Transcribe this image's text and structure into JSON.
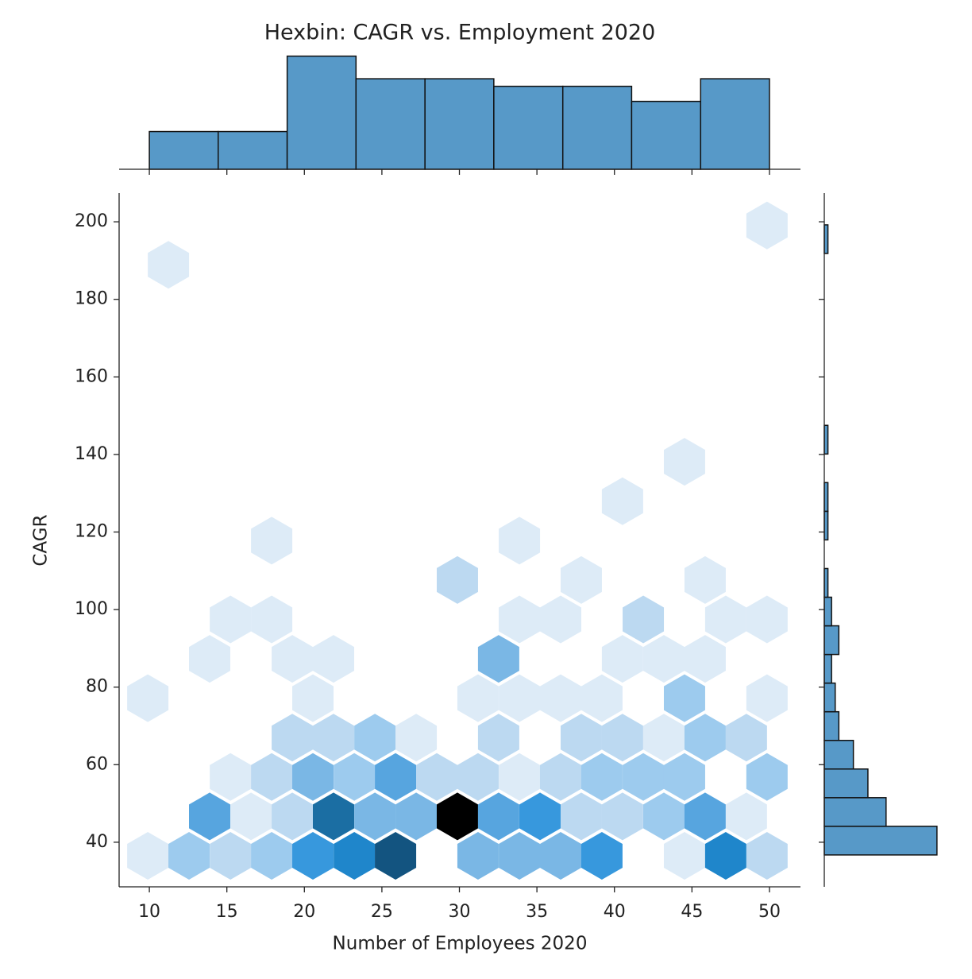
{
  "chart_data": [
    {
      "type": "hexbin",
      "title": "Hexbin: CAGR vs. Employment 2020",
      "x_label": "Number of Employees 2020",
      "y_label": "CAGR",
      "x": [
        9.9,
        12.56,
        15.23,
        17.89,
        20.55,
        23.22,
        25.88,
        31.2,
        33.87,
        36.53,
        39.19,
        44.52,
        47.18,
        49.84,
        13.89,
        16.56,
        19.22,
        21.88,
        24.55,
        27.21,
        29.87,
        32.53,
        35.2,
        37.86,
        40.52,
        43.19,
        45.85,
        48.51,
        15.23,
        17.89,
        20.55,
        23.22,
        25.88,
        28.54,
        31.2,
        33.87,
        36.53,
        39.19,
        41.86,
        44.52,
        49.84,
        19.22,
        21.88,
        24.55,
        27.21,
        32.53,
        37.86,
        40.52,
        43.19,
        45.85,
        48.51,
        9.9,
        20.55,
        31.2,
        33.87,
        36.53,
        39.19,
        44.52,
        49.84,
        13.89,
        19.22,
        21.88,
        32.53,
        40.52,
        43.19,
        45.85,
        15.23,
        17.89,
        33.87,
        36.53,
        41.86,
        47.18,
        49.84,
        29.87,
        37.86,
        45.85,
        17.89,
        33.87,
        40.52,
        44.52,
        11.23,
        49.84
      ],
      "y": [
        36.5,
        36.5,
        36.5,
        36.5,
        36.5,
        36.5,
        36.5,
        36.5,
        36.5,
        36.5,
        36.5,
        36.5,
        36.5,
        36.5,
        46.66,
        46.66,
        46.66,
        46.66,
        46.66,
        46.66,
        46.66,
        46.66,
        46.66,
        46.66,
        46.66,
        46.66,
        46.66,
        46.66,
        56.82,
        56.82,
        56.82,
        56.82,
        56.82,
        56.82,
        56.82,
        56.82,
        56.82,
        56.82,
        56.82,
        56.82,
        56.82,
        66.98,
        66.98,
        66.98,
        66.98,
        66.98,
        66.98,
        66.98,
        66.98,
        66.98,
        66.98,
        77.14,
        77.14,
        77.14,
        77.14,
        77.14,
        77.14,
        77.14,
        77.14,
        87.3,
        87.3,
        87.3,
        87.3,
        87.3,
        87.3,
        87.3,
        97.46,
        97.46,
        97.46,
        97.46,
        97.46,
        97.46,
        97.46,
        107.62,
        107.62,
        107.62,
        117.78,
        117.78,
        127.94,
        138.1,
        188.9,
        199.06
      ],
      "values": [
        1,
        3,
        2,
        3,
        6,
        7,
        9,
        4,
        4,
        4,
        6,
        1,
        7,
        2,
        5,
        1,
        2,
        8,
        4,
        4,
        10,
        5,
        6,
        2,
        2,
        3,
        5,
        1,
        1,
        2,
        4,
        3,
        5,
        2,
        2,
        1,
        2,
        3,
        3,
        3,
        3,
        2,
        2,
        3,
        1,
        2,
        2,
        2,
        1,
        3,
        2,
        1,
        1,
        1,
        1,
        1,
        1,
        3,
        1,
        1,
        1,
        1,
        4,
        1,
        1,
        1,
        1,
        1,
        1,
        1,
        2,
        1,
        1,
        2,
        1,
        1,
        1,
        1,
        1,
        1,
        1,
        1
      ],
      "cmap": [
        "#ddebf7",
        "#bcd9f1",
        "#9dcbee",
        "#7ab7e5",
        "#57a5df",
        "#3798dd",
        "#1f86cb",
        "#1b6ea3",
        "#135480",
        "#000000"
      ],
      "clim": [
        1,
        10
      ],
      "xlim": [
        8.05,
        52.0
      ],
      "ylim": [
        28.5,
        207.4
      ],
      "xticks": [
        10,
        15,
        20,
        25,
        30,
        35,
        40,
        45,
        50
      ],
      "yticks": [
        40,
        60,
        80,
        100,
        120,
        140,
        160,
        180,
        200
      ]
    },
    {
      "type": "histogram",
      "orientation": "vertical",
      "color": "#5799c8",
      "bins": [
        10,
        14.44,
        18.89,
        23.33,
        27.78,
        32.22,
        36.67,
        41.11,
        45.56,
        50
      ],
      "values": [
        5,
        5,
        15,
        12,
        12,
        11,
        11,
        9,
        12
      ],
      "ylim": [
        0,
        15.7
      ]
    },
    {
      "type": "histogram",
      "orientation": "horizontal",
      "color": "#5799c8",
      "bins": [
        36.72,
        44.11,
        51.49,
        58.88,
        66.26,
        73.65,
        81.04,
        88.42,
        95.81,
        103.19,
        110.58,
        117.97,
        125.35,
        132.74,
        140.12,
        147.51,
        154.9,
        162.28,
        169.67,
        177.05,
        184.44,
        191.83,
        199.21
      ],
      "values": [
        31,
        17,
        12,
        8,
        4,
        3,
        2,
        4,
        2,
        1,
        0,
        1,
        1,
        0,
        1,
        0,
        0,
        0,
        0,
        0,
        0,
        1
      ],
      "xlim": [
        0,
        35.4
      ]
    }
  ]
}
